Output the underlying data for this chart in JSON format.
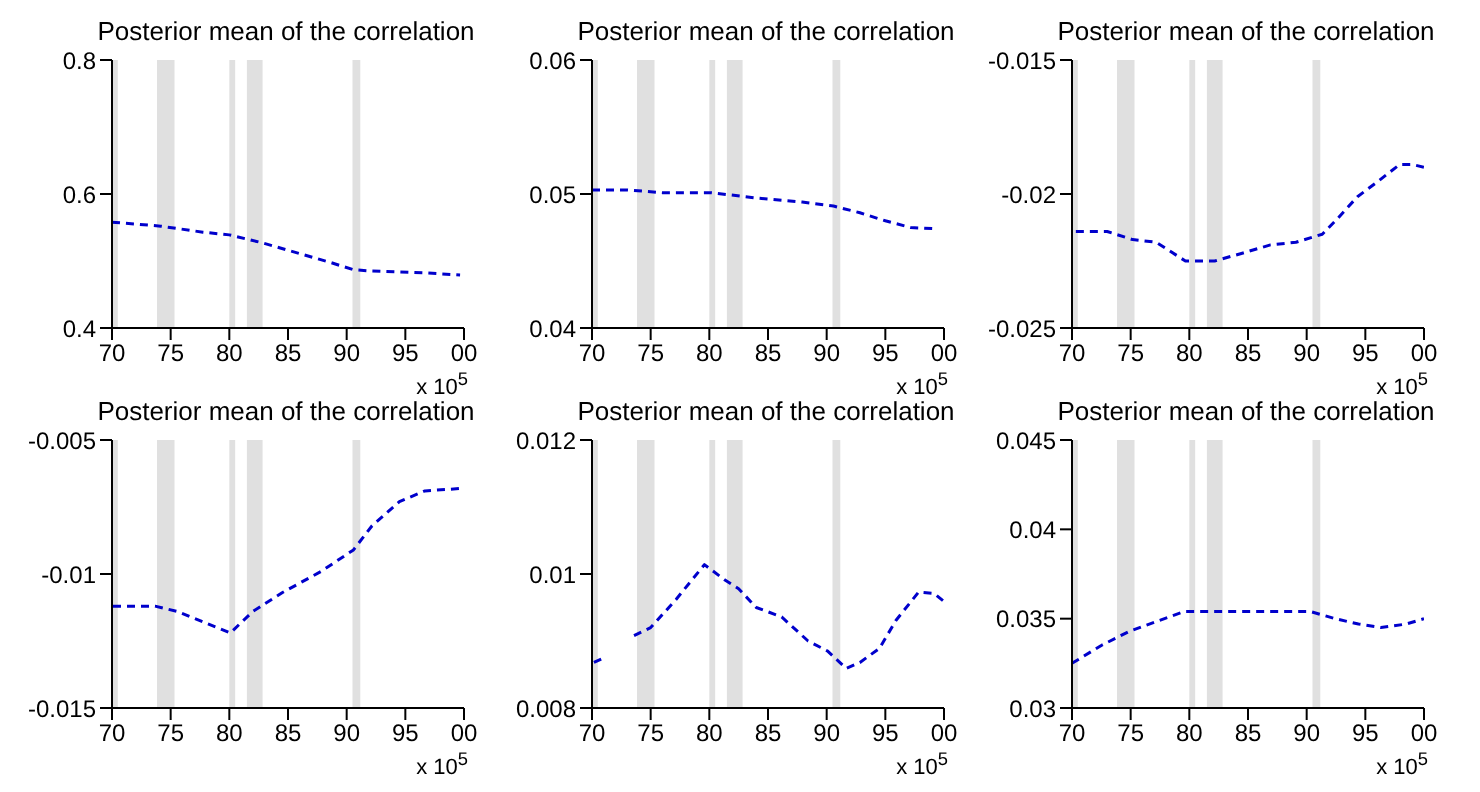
{
  "chart_data": [
    {
      "type": "line",
      "title": "Posterior mean of the correlation",
      "annotations": [
        "x 10$^{5}$"
      ],
      "xlim": [
        "1970",
        "2000"
      ],
      "xticks": [
        {
          "value": "1970",
          "label": "70"
        },
        {
          "value": "1975",
          "label": "75"
        },
        {
          "value": "1980",
          "label": "80"
        },
        {
          "value": "1985",
          "label": "85"
        },
        {
          "value": "1990",
          "label": "90"
        },
        {
          "value": "1995",
          "label": "95"
        },
        {
          "value": "2000",
          "label": "00"
        }
      ],
      "ylim": [
        0.4,
        0.8
      ],
      "yticks": [
        0.4,
        0.6,
        0.8
      ],
      "line_style": "dashed",
      "marker": "none",
      "bands": [
        {
          "axis": "x",
          "from": "1970-01",
          "to": "1970-07",
          "color": "#e0e0e0"
        },
        {
          "axis": "x",
          "from": "1973-11",
          "to": "1975-05",
          "color": "#e0e0e0"
        },
        {
          "axis": "x",
          "from": "1980-01",
          "to": "1980-07",
          "color": "#e0e0e0"
        },
        {
          "axis": "x",
          "from": "1981-07",
          "to": "1982-11",
          "color": "#e0e0e0"
        },
        {
          "axis": "x",
          "from": "1990-07",
          "to": "1991-03",
          "color": "#e0e0e0"
        }
      ],
      "series": [
        {
          "color": "#0000cc",
          "x": [
            "1970-01",
            "1974-03",
            "1977-10",
            "1980-01",
            "1982-11",
            "1985-01",
            "1988-08",
            "1990-08",
            "1992-03",
            "1996-12",
            "1999-09"
          ],
          "values": [
            0.558,
            0.552,
            0.543,
            0.539,
            0.527,
            0.516,
            0.498,
            0.487,
            0.485,
            0.482,
            0.479
          ]
        }
      ]
    },
    {
      "type": "line",
      "title": "Posterior mean of the correlation",
      "annotations": [
        "x 10$^{5}$"
      ],
      "xlim": [
        "1970",
        "2000"
      ],
      "xticks": [
        {
          "value": "1970",
          "label": "70"
        },
        {
          "value": "1975",
          "label": "75"
        },
        {
          "value": "1980",
          "label": "80"
        },
        {
          "value": "1985",
          "label": "85"
        },
        {
          "value": "1990",
          "label": "90"
        },
        {
          "value": "1995",
          "label": "95"
        },
        {
          "value": "2000",
          "label": "00"
        }
      ],
      "ylim": [
        0.04,
        0.06
      ],
      "yticks": [
        0.04,
        0.05,
        0.06
      ],
      "line_style": "dashed",
      "marker": "none",
      "bands": [
        {
          "axis": "x",
          "from": "1970-01",
          "to": "1970-07",
          "color": "#e0e0e0"
        },
        {
          "axis": "x",
          "from": "1973-11",
          "to": "1975-05",
          "color": "#e0e0e0"
        },
        {
          "axis": "x",
          "from": "1980-01",
          "to": "1980-07",
          "color": "#e0e0e0"
        },
        {
          "axis": "x",
          "from": "1981-07",
          "to": "1982-11",
          "color": "#e0e0e0"
        },
        {
          "axis": "x",
          "from": "1990-07",
          "to": "1991-03",
          "color": "#e0e0e0"
        }
      ],
      "series": [
        {
          "color": "#0000cc",
          "x": [
            "1970-01",
            "1973-01",
            "1976-01",
            "1980-03",
            "1984-01",
            "1987-12",
            "1990-08",
            "1992-11",
            "1995-01",
            "1997-03",
            "1999-06"
          ],
          "values": [
            0.0503,
            0.0503,
            0.0501,
            0.0501,
            0.0497,
            0.0494,
            0.0491,
            0.0486,
            0.048,
            0.0475,
            0.0474
          ]
        }
      ]
    },
    {
      "type": "line",
      "title": "Posterior mean of the correlation",
      "annotations": [
        "x 10$^{5}$"
      ],
      "xlim": [
        "1970",
        "2000"
      ],
      "xticks": [
        {
          "value": "1970",
          "label": "70"
        },
        {
          "value": "1975",
          "label": "75"
        },
        {
          "value": "1980",
          "label": "80"
        },
        {
          "value": "1985",
          "label": "85"
        },
        {
          "value": "1990",
          "label": "90"
        },
        {
          "value": "1995",
          "label": "95"
        },
        {
          "value": "2000",
          "label": "00"
        }
      ],
      "ylim": [
        -0.025,
        -0.015
      ],
      "yticks": [
        -0.025,
        -0.02,
        -0.015
      ],
      "line_style": "dashed",
      "marker": "none",
      "bands": [
        {
          "axis": "x",
          "from": "1970-01",
          "to": "1970-07",
          "color": "#e0e0e0"
        },
        {
          "axis": "x",
          "from": "1973-11",
          "to": "1975-05",
          "color": "#e0e0e0"
        },
        {
          "axis": "x",
          "from": "1980-01",
          "to": "1980-07",
          "color": "#e0e0e0"
        },
        {
          "axis": "x",
          "from": "1981-07",
          "to": "1982-11",
          "color": "#e0e0e0"
        },
        {
          "axis": "x",
          "from": "1990-07",
          "to": "1991-03",
          "color": "#e0e0e0"
        }
      ],
      "series": [
        {
          "color": "#0000cc",
          "x": [
            "1970-05",
            "1973-01",
            "1975-03",
            "1977-03",
            "1979-09",
            "1982-03",
            "1984-08",
            "1986-12",
            "1989-02",
            "1991-05",
            "1992-09",
            "1994-05",
            "1996-03",
            "1997-12",
            "1999-01",
            "2000-01"
          ],
          "values": [
            -0.0214,
            -0.0214,
            -0.0217,
            -0.0218,
            -0.0225,
            -0.0225,
            -0.0222,
            -0.0219,
            -0.0218,
            -0.0215,
            -0.0209,
            -0.0201,
            -0.0195,
            -0.0189,
            -0.0189,
            -0.019
          ]
        }
      ]
    },
    {
      "type": "line",
      "title": "Posterior mean of the correlation",
      "annotations": [
        "x 10$^{5}$"
      ],
      "xlim": [
        "1970",
        "2000"
      ],
      "xticks": [
        {
          "value": "1970",
          "label": "70"
        },
        {
          "value": "1975",
          "label": "75"
        },
        {
          "value": "1980",
          "label": "80"
        },
        {
          "value": "1985",
          "label": "85"
        },
        {
          "value": "1990",
          "label": "90"
        },
        {
          "value": "1995",
          "label": "95"
        },
        {
          "value": "2000",
          "label": "00"
        }
      ],
      "ylim": [
        -0.015,
        -0.005
      ],
      "yticks": [
        -0.015,
        -0.01,
        -0.005
      ],
      "line_style": "dashed",
      "marker": "none",
      "bands": [
        {
          "axis": "x",
          "from": "1970-01",
          "to": "1970-07",
          "color": "#e0e0e0"
        },
        {
          "axis": "x",
          "from": "1973-11",
          "to": "1975-05",
          "color": "#e0e0e0"
        },
        {
          "axis": "x",
          "from": "1980-01",
          "to": "1980-07",
          "color": "#e0e0e0"
        },
        {
          "axis": "x",
          "from": "1981-07",
          "to": "1982-11",
          "color": "#e0e0e0"
        },
        {
          "axis": "x",
          "from": "1990-07",
          "to": "1991-03",
          "color": "#e0e0e0"
        }
      ],
      "series": [
        {
          "color": "#0000cc",
          "x": [
            "1970-02",
            "1973-09",
            "1975-08",
            "1980-02",
            "1982-01",
            "1984-07",
            "1987-11",
            "1990-08",
            "1992-03",
            "1994-07",
            "1996-09",
            "2000-01"
          ],
          "values": [
            -0.0112,
            -0.0112,
            -0.0114,
            -0.0122,
            -0.0114,
            -0.0107,
            -0.0099,
            -0.0091,
            -0.0082,
            -0.0073,
            -0.0069,
            -0.0068
          ]
        }
      ]
    },
    {
      "type": "line",
      "title": "Posterior mean of the correlation",
      "annotations": [
        "x 10$^{5}$"
      ],
      "xlim": [
        "1970",
        "2000"
      ],
      "xticks": [
        {
          "value": "1970",
          "label": "70"
        },
        {
          "value": "1975",
          "label": "75"
        },
        {
          "value": "1980",
          "label": "80"
        },
        {
          "value": "1985",
          "label": "85"
        },
        {
          "value": "1990",
          "label": "90"
        },
        {
          "value": "1995",
          "label": "95"
        },
        {
          "value": "2000",
          "label": "00"
        }
      ],
      "ylim": [
        0.008,
        0.012
      ],
      "yticks": [
        0.008,
        0.01,
        0.012
      ],
      "line_style": "dashed",
      "marker": "none",
      "bands": [
        {
          "axis": "x",
          "from": "1970-01",
          "to": "1970-07",
          "color": "#e0e0e0"
        },
        {
          "axis": "x",
          "from": "1973-11",
          "to": "1975-05",
          "color": "#e0e0e0"
        },
        {
          "axis": "x",
          "from": "1980-01",
          "to": "1980-07",
          "color": "#e0e0e0"
        },
        {
          "axis": "x",
          "from": "1981-07",
          "to": "1982-11",
          "color": "#e0e0e0"
        },
        {
          "axis": "x",
          "from": "1990-07",
          "to": "1991-03",
          "color": "#e0e0e0"
        }
      ],
      "series": [
        {
          "color": "#0000cc",
          "x": [
            "1970-03",
            "1970-12",
            "1972-01",
            "1973-08",
            "1975-01",
            "1977-03",
            "1979-08",
            "1981-05",
            "1982-07",
            "1984-01",
            "1986-03",
            "1988-06",
            "1990-02",
            "1991-09",
            "1992-11",
            "1994-07",
            "1995-12",
            "1997-11",
            "1999-03",
            "2000-01"
          ],
          "values": [
            0.00868,
            0.00874,
            null,
            0.00908,
            0.0092,
            0.00962,
            0.01014,
            0.00991,
            0.00978,
            0.0095,
            0.00936,
            0.009,
            0.00885,
            0.00859,
            0.00868,
            0.00889,
            0.00931,
            0.00973,
            0.00971,
            0.00959
          ]
        }
      ]
    },
    {
      "type": "line",
      "title": "Posterior mean of the correlation",
      "annotations": [
        "x 10$^{5}$"
      ],
      "xlim": [
        "1970",
        "2000"
      ],
      "xticks": [
        {
          "value": "1970",
          "label": "70"
        },
        {
          "value": "1975",
          "label": "75"
        },
        {
          "value": "1980",
          "label": "80"
        },
        {
          "value": "1985",
          "label": "85"
        },
        {
          "value": "1990",
          "label": "90"
        },
        {
          "value": "1995",
          "label": "95"
        },
        {
          "value": "2000",
          "label": "00"
        }
      ],
      "ylim": [
        0.03,
        0.045
      ],
      "yticks": [
        0.03,
        0.035,
        0.04,
        0.045
      ],
      "line_style": "dashed",
      "marker": "none",
      "bands": [
        {
          "axis": "x",
          "from": "1970-01",
          "to": "1970-07",
          "color": "#e0e0e0"
        },
        {
          "axis": "x",
          "from": "1973-11",
          "to": "1975-05",
          "color": "#e0e0e0"
        },
        {
          "axis": "x",
          "from": "1980-01",
          "to": "1980-07",
          "color": "#e0e0e0"
        },
        {
          "axis": "x",
          "from": "1981-07",
          "to": "1982-11",
          "color": "#e0e0e0"
        },
        {
          "axis": "x",
          "from": "1990-07",
          "to": "1991-03",
          "color": "#e0e0e0"
        }
      ],
      "series": [
        {
          "color": "#0000cc",
          "x": [
            "1970-01",
            "1972-07",
            "1974-12",
            "1979-08",
            "1982-05",
            "1985-05",
            "1990-05",
            "1992-06",
            "1994-06",
            "1996-05",
            "1998-07",
            "2000-01"
          ],
          "values": [
            0.0325,
            0.0335,
            0.0343,
            0.0354,
            0.0354,
            0.0354,
            0.0354,
            0.035,
            0.0347,
            0.0345,
            0.0347,
            0.035
          ]
        }
      ]
    }
  ]
}
